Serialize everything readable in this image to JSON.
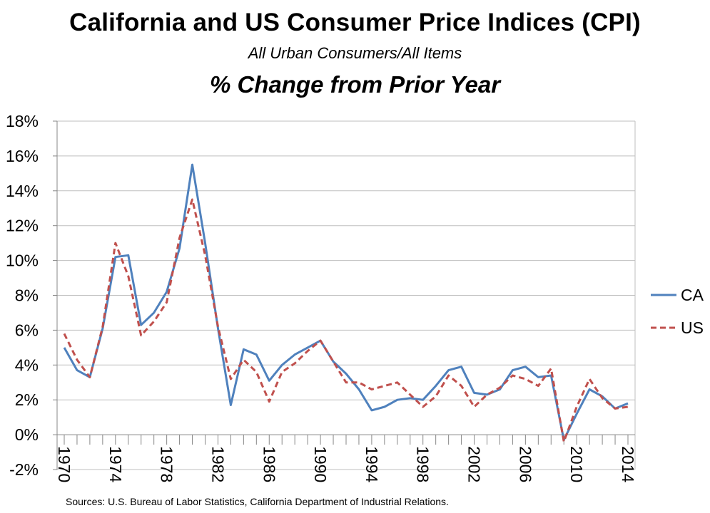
{
  "title": "California and US Consumer Price Indices (CPI)",
  "subtitle": "All Urban Consumers/All Items",
  "subtitle2": "% Change from Prior Year",
  "source": "Sources: U.S. Bureau of Labor Statistics, California Department  of Industrial Relations.",
  "chart_data": {
    "type": "line",
    "x": [
      1970,
      1971,
      1972,
      1973,
      1974,
      1975,
      1976,
      1977,
      1978,
      1979,
      1980,
      1981,
      1982,
      1983,
      1984,
      1985,
      1986,
      1987,
      1988,
      1989,
      1990,
      1991,
      1992,
      1993,
      1994,
      1995,
      1996,
      1997,
      1998,
      1999,
      2000,
      2001,
      2002,
      2003,
      2004,
      2005,
      2006,
      2007,
      2008,
      2009,
      2010,
      2011,
      2012,
      2013,
      2014
    ],
    "x_tick_labels": [
      "1970",
      "1974",
      "1978",
      "1982",
      "1986",
      "1990",
      "1994",
      "1998",
      "2002",
      "2006",
      "2010",
      "2014"
    ],
    "y_tick_labels": [
      "-2%",
      "0%",
      "2%",
      "4%",
      "6%",
      "8%",
      "10%",
      "12%",
      "14%",
      "16%",
      "18%"
    ],
    "ylim": [
      -2,
      18
    ],
    "y_unit": "%",
    "grid": "horizontal",
    "legend_position": "right",
    "series": [
      {
        "name": "CA",
        "color": "#4f81bd",
        "style": "solid",
        "values": [
          5.0,
          3.7,
          3.3,
          6.1,
          10.2,
          10.3,
          6.3,
          7.0,
          8.2,
          10.7,
          15.5,
          11.0,
          6.1,
          1.7,
          4.9,
          4.6,
          3.1,
          4.0,
          4.6,
          5.0,
          5.4,
          4.2,
          3.5,
          2.6,
          1.4,
          1.6,
          2.0,
          2.1,
          2.0,
          2.8,
          3.7,
          3.9,
          2.4,
          2.3,
          2.6,
          3.7,
          3.9,
          3.3,
          3.4,
          -0.3,
          1.2,
          2.6,
          2.2,
          1.5,
          1.8
        ]
      },
      {
        "name": "US",
        "color": "#c0504d",
        "style": "dashed",
        "values": [
          5.8,
          4.3,
          3.3,
          6.2,
          11.0,
          9.1,
          5.7,
          6.5,
          7.6,
          11.3,
          13.5,
          10.3,
          6.2,
          3.2,
          4.3,
          3.6,
          1.9,
          3.6,
          4.1,
          4.8,
          5.4,
          4.2,
          3.0,
          3.0,
          2.6,
          2.8,
          3.0,
          2.3,
          1.6,
          2.2,
          3.4,
          2.8,
          1.6,
          2.3,
          2.7,
          3.4,
          3.2,
          2.8,
          3.8,
          -0.4,
          1.6,
          3.2,
          2.1,
          1.5,
          1.6
        ]
      }
    ]
  }
}
